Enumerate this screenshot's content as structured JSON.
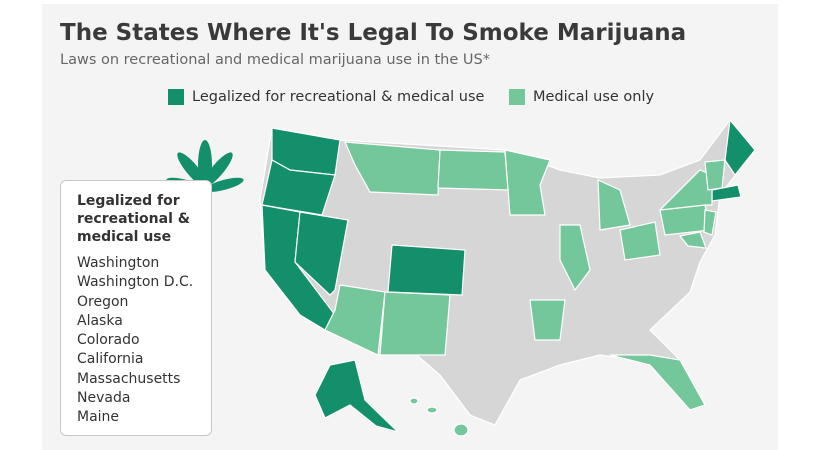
{
  "title": "The States Where It's Legal To Smoke Marijuana",
  "subtitle": "Laws on recreational and medical marijuana use in the US*",
  "legend": [
    {
      "label": "Legalized for recreational & medical use",
      "color": "#148f6c"
    },
    {
      "label": "Medical use only",
      "color": "#73c79a"
    }
  ],
  "other_color": "#d6d6d6",
  "list": {
    "title": "Legalized for recreational & medical use",
    "states": [
      "Washington",
      "Washington D.C.",
      "Oregon",
      "Alaska",
      "Colorado",
      "California",
      "Massachusetts",
      "Nevada",
      "Maine"
    ]
  }
}
